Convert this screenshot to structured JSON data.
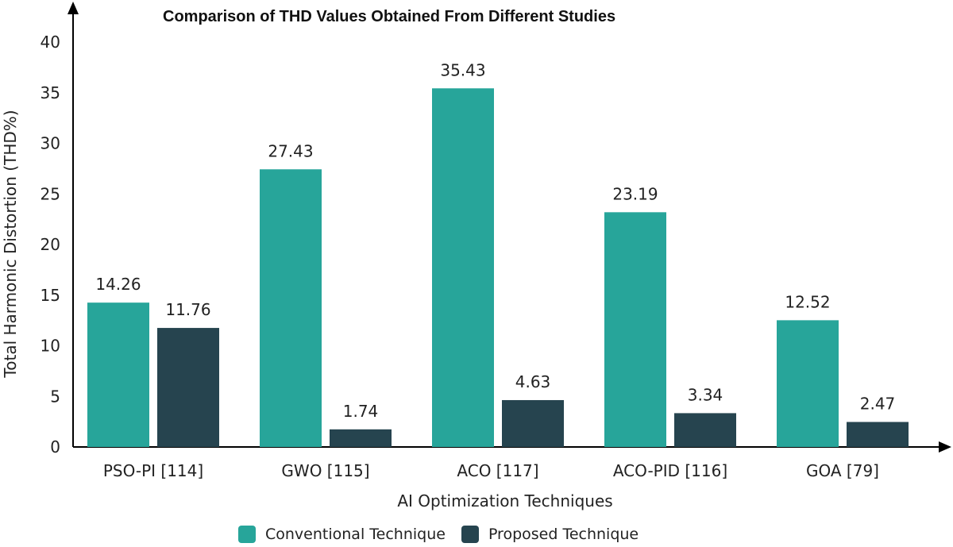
{
  "chart_data": {
    "type": "bar",
    "title": "Comparison of THD Values Obtained From Different Studies",
    "xlabel": "AI Optimization Techniques",
    "ylabel": "Total Harmonic Distortion (THD%)",
    "categories": [
      "PSO-PI [114]",
      "GWO [115]",
      "ACO [117]",
      "ACO-PID [116]",
      "GOA [79]"
    ],
    "ylim": [
      0,
      40
    ],
    "yticks": [
      0,
      5,
      10,
      15,
      20,
      25,
      30,
      35,
      40
    ],
    "grid": false,
    "legend_position": "bottom",
    "series": [
      {
        "name": "Conventional Technique",
        "color": "#27a59a",
        "values": [
          14.26,
          27.43,
          35.43,
          23.19,
          12.52
        ],
        "labels": [
          "14.26",
          "27.43",
          "35.43",
          "23.19",
          "12.52"
        ]
      },
      {
        "name": "Proposed Technique",
        "color": "#26444f",
        "values": [
          11.76,
          1.74,
          4.63,
          3.34,
          2.47
        ],
        "labels": [
          "11.76",
          "1.74",
          "4.63",
          "3.34",
          "2.47"
        ]
      }
    ]
  }
}
